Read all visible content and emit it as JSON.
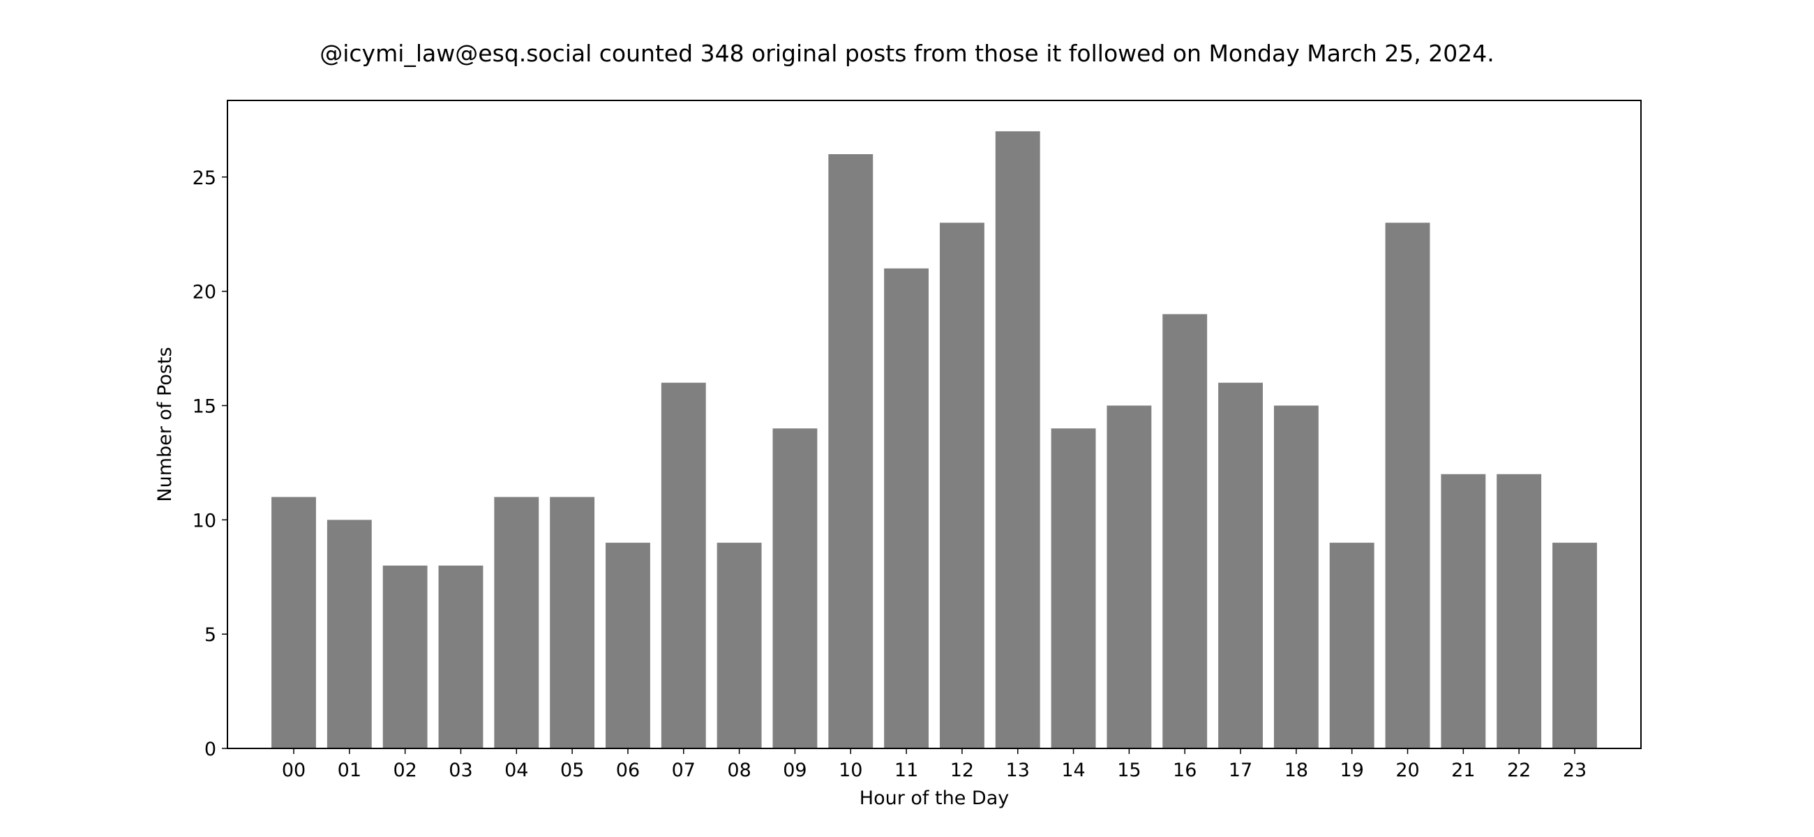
{
  "chart_data": {
    "type": "bar",
    "title": "@icymi_law@esq.social counted 348 original posts from those it followed on Monday March 25, 2024.",
    "xlabel": "Hour of the Day",
    "ylabel": "Number of Posts",
    "categories": [
      "00",
      "01",
      "02",
      "03",
      "04",
      "05",
      "06",
      "07",
      "08",
      "09",
      "10",
      "11",
      "12",
      "13",
      "14",
      "15",
      "16",
      "17",
      "18",
      "19",
      "20",
      "21",
      "22",
      "23"
    ],
    "values": [
      11,
      10,
      8,
      8,
      11,
      11,
      9,
      16,
      9,
      14,
      26,
      21,
      23,
      27,
      14,
      15,
      19,
      16,
      15,
      9,
      23,
      12,
      12,
      9
    ],
    "ylim": [
      0,
      28.35
    ],
    "yticks": [
      0,
      5,
      10,
      15,
      20,
      25
    ],
    "grid": false,
    "legend": "none",
    "bar_color": "#808080",
    "axis_color": "#000000"
  }
}
